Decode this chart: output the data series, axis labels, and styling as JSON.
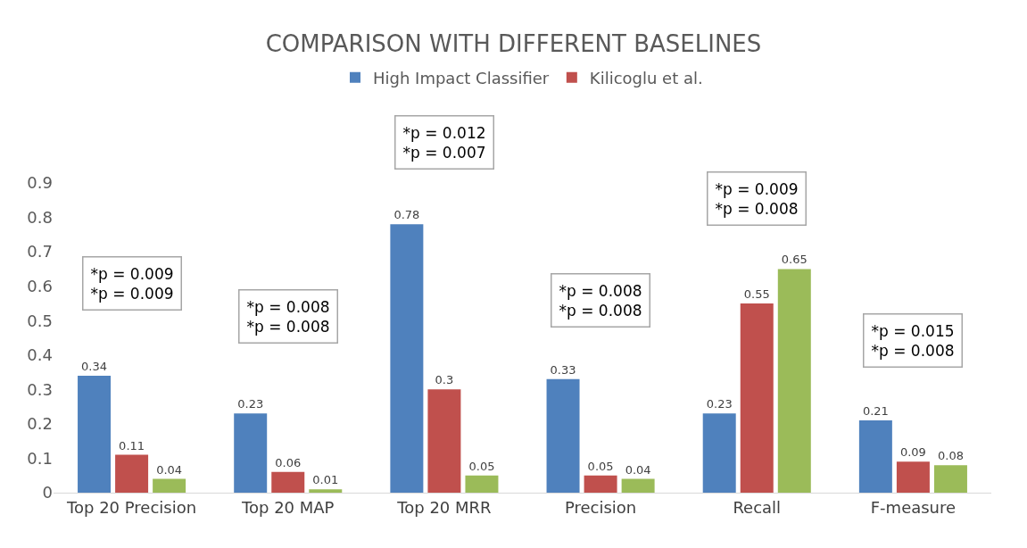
{
  "chart_data": {
    "type": "bar",
    "title": "COMPARISON WITH DIFFERENT BASELINES",
    "categories": [
      "Top 20 Precision",
      "Top 20 MAP",
      "Top 20 MRR",
      "Precision",
      "Recall",
      "F-measure"
    ],
    "series": [
      {
        "name": "High Impact Classifier",
        "color": "#4f81bd",
        "values": [
          0.34,
          0.23,
          0.78,
          0.33,
          0.23,
          0.21
        ]
      },
      {
        "name": "Kilicoglu et al.",
        "color": "#c0504d",
        "values": [
          0.11,
          0.06,
          0.3,
          0.05,
          0.55,
          0.09
        ]
      },
      {
        "color": "#9bbb59",
        "values": [
          0.04,
          0.01,
          0.05,
          0.04,
          0.65,
          0.08
        ]
      }
    ],
    "ylim": [
      0,
      0.9
    ],
    "yticks": [
      0,
      0.1,
      0.2,
      0.3,
      0.4,
      0.5,
      0.6,
      0.7,
      0.8,
      0.9
    ],
    "grid": false,
    "legend": "top",
    "data_labels": true,
    "annotations": [
      "*p = 0.009\n*p = 0.009",
      "*p = 0.008\n*p = 0.008",
      "*p = 0.012\n*p = 0.007",
      "*p = 0.008\n*p = 0.008",
      "*p = 0.009\n*p = 0.008",
      "*p = 0.015\n*p = 0.008"
    ]
  }
}
